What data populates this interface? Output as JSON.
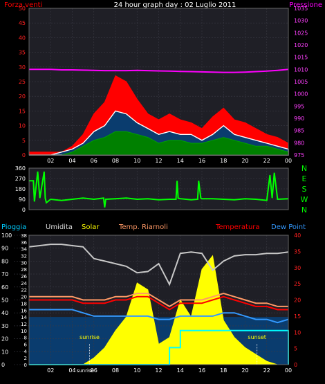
{
  "title": "24 hour graph day : 02 Luglio 2011",
  "chart_data": [
    {
      "type": "area",
      "legend": [
        "Forza venti",
        "Pressione"
      ],
      "ylabel_left": "Forza venti",
      "ylabel_right": "Pressione",
      "ylim_left": [
        0,
        50
      ],
      "yticks_left": [
        "0",
        "5",
        "10",
        "15",
        "20",
        "25",
        "30",
        "35",
        "40",
        "45",
        "50"
      ],
      "ylim_right": [
        975,
        1035
      ],
      "yticks_right": [
        "975",
        "980",
        "985",
        "990",
        "995",
        "1000",
        "1005",
        "1010",
        "1015",
        "1020",
        "1025",
        "1030",
        "1035"
      ],
      "x_ticks": [
        "02",
        "04",
        "06",
        "08",
        "10",
        "12",
        "14",
        "16",
        "18",
        "20",
        "22",
        "00"
      ],
      "x_hours": [
        2,
        4,
        6,
        8,
        10,
        12,
        14,
        16,
        18,
        20,
        22,
        24
      ],
      "hours": [
        0,
        1,
        2,
        3,
        4,
        5,
        6,
        7,
        8,
        9,
        10,
        11,
        12,
        13,
        14,
        15,
        16,
        17,
        18,
        19,
        20,
        21,
        22,
        23,
        24
      ],
      "series": [
        {
          "name": "Forza venti",
          "color": "#ff0000",
          "values": [
            1,
            1,
            1,
            1,
            3,
            7,
            14,
            18,
            27,
            25,
            19,
            14,
            12,
            14,
            12,
            11,
            9,
            13,
            16,
            12,
            11,
            9,
            7,
            6,
            4
          ]
        },
        {
          "name": "",
          "color": "#ffffff",
          "values": [
            0,
            0,
            0,
            1,
            2,
            4,
            8,
            10,
            15,
            14,
            11,
            9,
            7,
            8,
            7,
            7,
            5,
            7,
            10,
            7,
            6,
            5,
            4,
            3,
            2
          ]
        },
        {
          "name": "",
          "color": "#00a000",
          "values": [
            0,
            0,
            0,
            0,
            1,
            3,
            5,
            6,
            8,
            8,
            7,
            6,
            4,
            5,
            5,
            4,
            4,
            5,
            6,
            5,
            4,
            3,
            3,
            2,
            1
          ]
        },
        {
          "name": "Pressione",
          "color": "#ff00ff",
          "values": [
            1010,
            1010,
            1010,
            1009.8,
            1009.8,
            1009.7,
            1009.6,
            1009.5,
            1009.5,
            1009.5,
            1009.6,
            1009.5,
            1009.4,
            1009.3,
            1009.2,
            1009.1,
            1009,
            1008.9,
            1008.8,
            1008.8,
            1008.9,
            1009.1,
            1009.3,
            1009.6,
            1010
          ]
        }
      ]
    },
    {
      "type": "line",
      "ylim": [
        0,
        360
      ],
      "yticks": [
        "0",
        "90",
        "180",
        "270",
        "360"
      ],
      "compass": [
        "N",
        "W",
        "S",
        "E",
        "N"
      ],
      "x_ticks": [
        "02",
        "04",
        "06",
        "08",
        "10",
        "12",
        "14",
        "16",
        "18",
        "20",
        "22",
        "00"
      ],
      "hours": [
        0,
        0.4,
        0.5,
        0.8,
        1.0,
        1.4,
        1.5,
        1.6,
        2.0,
        3,
        4,
        5,
        6,
        6.9,
        7.0,
        7.1,
        8,
        9,
        10,
        11,
        12,
        13,
        13.6,
        13.7,
        13.8,
        14,
        15,
        15.6,
        15.7,
        15.9,
        16,
        17,
        18,
        19,
        20,
        21,
        22,
        22.3,
        22.5,
        22.7,
        23,
        24
      ],
      "series": [
        {
          "name": "",
          "color": "#00ff00",
          "values": [
            250,
            250,
            70,
            330,
            100,
            330,
            100,
            60,
            90,
            80,
            90,
            100,
            90,
            100,
            20,
            90,
            95,
            100,
            90,
            95,
            85,
            90,
            90,
            250,
            100,
            95,
            85,
            90,
            250,
            100,
            95,
            95,
            90,
            85,
            95,
            90,
            80,
            300,
            100,
            320,
            90,
            95
          ]
        }
      ]
    },
    {
      "type": "area",
      "legend": [
        "Pioggia",
        "Umidita",
        "Solar",
        "Temp. Riarnoli",
        "Temperatura",
        "Dew Point"
      ],
      "ylim_left": [
        0,
        100
      ],
      "yticks_left": [
        "0",
        "10",
        "20",
        "30",
        "40",
        "50",
        "60",
        "70",
        "80",
        "90",
        "100"
      ],
      "ylim_inner": [
        0,
        38
      ],
      "yticks_inner": [
        "0",
        "2",
        "4",
        "6",
        "8",
        "10",
        "12",
        "14",
        "16",
        "18",
        "20",
        "22",
        "24",
        "26",
        "28",
        "30",
        "32",
        "34",
        "36",
        "38"
      ],
      "ylim_right": [
        0,
        40
      ],
      "yticks_right": [
        "0",
        "5",
        "10",
        "15",
        "20",
        "25",
        "30",
        "35",
        "40"
      ],
      "x_ticks": [
        "02",
        "04",
        "sunrise",
        "06",
        "08",
        "10",
        "12",
        "14",
        "16",
        "18",
        "20",
        "22",
        "00"
      ],
      "x_hours": [
        2,
        4,
        5.2,
        6,
        8,
        10,
        12,
        14,
        16,
        18,
        20,
        22,
        24
      ],
      "sunrise_label": "sunrise",
      "sunset_label": "sunset",
      "sunrise_hour": 5.6,
      "sunset_hour": 21.1,
      "hours": [
        0,
        1,
        2,
        3,
        4,
        5,
        6,
        7,
        8,
        9,
        10,
        11,
        12,
        13,
        14,
        15,
        16,
        17,
        18,
        19,
        20,
        21,
        22,
        23,
        24
      ],
      "series": [
        {
          "name": "Umidita",
          "color": "#c8c8c8",
          "values": [
            91,
            92,
            93,
            93,
            92,
            91,
            82,
            80,
            78,
            76,
            71,
            72,
            78,
            62,
            86,
            87,
            86,
            73,
            80,
            84,
            85,
            85,
            86,
            86,
            87
          ]
        },
        {
          "name": "Temperatura",
          "color": "#ff0000",
          "values": [
            20,
            20,
            20,
            20,
            20,
            19,
            19,
            19,
            20,
            20,
            21,
            21,
            19,
            17,
            19,
            19,
            19,
            20,
            21,
            20,
            19,
            18,
            18,
            17,
            17
          ]
        },
        {
          "name": "Temp. Riarnoli",
          "color": "#ff9966",
          "values": [
            21,
            21,
            21,
            21,
            21,
            20,
            20,
            20,
            21,
            21,
            22,
            22,
            20,
            18,
            20,
            20,
            20,
            21,
            22,
            21,
            20,
            19,
            19,
            18,
            18
          ]
        },
        {
          "name": "Dew Point",
          "color": "#3399ff",
          "values": [
            17,
            17,
            17,
            17,
            17,
            16,
            15,
            15,
            15,
            15,
            15,
            15,
            14,
            14,
            15,
            15,
            15,
            15,
            16,
            16,
            15,
            14,
            14,
            13,
            14
          ]
        },
        {
          "name": "Solar",
          "color": "#ffff00",
          "values": [
            0,
            0,
            0,
            0,
            0,
            0,
            2,
            5,
            10,
            14,
            24,
            22,
            6,
            8,
            19,
            14,
            28,
            32,
            13,
            8,
            5,
            3,
            1,
            0,
            0
          ]
        },
        {
          "name": "Pioggia",
          "color": "#00ffff",
          "values": [
            0,
            0,
            0,
            0,
            0,
            0,
            0,
            0,
            0,
            0,
            0,
            0,
            0,
            5,
            10,
            10,
            10,
            10,
            10,
            10,
            10,
            10,
            10,
            10,
            0
          ]
        }
      ]
    }
  ]
}
